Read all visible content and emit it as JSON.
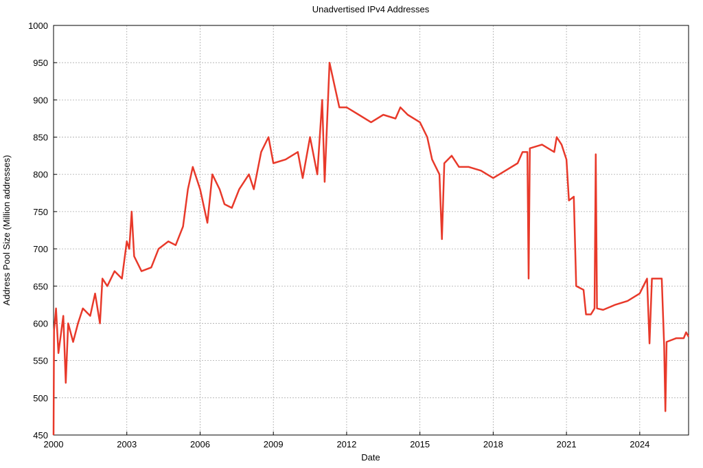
{
  "chart_data": {
    "type": "line",
    "title": "Unadvertised IPv4 Addresses",
    "x_label": "Date",
    "y_label": "Address Pool Size (Million addresses)",
    "xlim": [
      2000,
      2026
    ],
    "xticks": [
      2000,
      2003,
      2006,
      2009,
      2012,
      2015,
      2018,
      2021,
      2024
    ],
    "ylim": [
      450,
      1000
    ],
    "yticks": [
      450,
      500,
      550,
      600,
      650,
      700,
      750,
      800,
      850,
      900,
      950,
      1000
    ],
    "grid": true,
    "series": [
      {
        "color": "#e8392a",
        "x": [
          2000.0,
          2000.02,
          2000.1,
          2000.2,
          2000.4,
          2000.5,
          2000.6,
          2000.8,
          2001.0,
          2001.2,
          2001.5,
          2001.7,
          2001.9,
          2002.0,
          2002.2,
          2002.5,
          2002.8,
          2003.0,
          2003.1,
          2003.2,
          2003.3,
          2003.6,
          2004.0,
          2004.3,
          2004.7,
          2005.0,
          2005.3,
          2005.5,
          2005.7,
          2006.0,
          2006.3,
          2006.5,
          2006.8,
          2007.0,
          2007.3,
          2007.6,
          2008.0,
          2008.2,
          2008.5,
          2008.8,
          2009.0,
          2009.5,
          2010.0,
          2010.2,
          2010.5,
          2010.8,
          2011.0,
          2011.1,
          2011.3,
          2011.5,
          2011.7,
          2012.0,
          2012.5,
          2013.0,
          2013.5,
          2014.0,
          2014.2,
          2014.5,
          2015.0,
          2015.3,
          2015.5,
          2015.8,
          2015.9,
          2016.0,
          2016.3,
          2016.6,
          2017.0,
          2017.5,
          2018.0,
          2018.5,
          2019.0,
          2019.2,
          2019.4,
          2019.45,
          2019.5,
          2020.0,
          2020.5,
          2020.6,
          2020.8,
          2021.0,
          2021.1,
          2021.3,
          2021.4,
          2021.7,
          2021.8,
          2022.0,
          2022.15,
          2022.2,
          2022.25,
          2022.5,
          2023.0,
          2023.5,
          2024.0,
          2024.3,
          2024.4,
          2024.5,
          2024.9,
          2025.0,
          2025.05,
          2025.1,
          2025.5,
          2025.8,
          2025.9,
          2026.0
        ],
        "values": [
          450,
          590,
          620,
          560,
          610,
          520,
          600,
          575,
          600,
          620,
          610,
          640,
          600,
          660,
          650,
          670,
          660,
          710,
          700,
          750,
          690,
          670,
          675,
          700,
          710,
          705,
          730,
          780,
          810,
          780,
          735,
          800,
          780,
          760,
          755,
          780,
          800,
          780,
          830,
          850,
          815,
          820,
          830,
          795,
          850,
          800,
          900,
          790,
          950,
          920,
          890,
          890,
          880,
          870,
          880,
          875,
          890,
          880,
          870,
          850,
          820,
          800,
          713,
          815,
          825,
          810,
          810,
          805,
          795,
          805,
          815,
          830,
          830,
          660,
          835,
          840,
          830,
          850,
          840,
          820,
          765,
          770,
          650,
          645,
          612,
          612,
          620,
          827,
          620,
          618,
          625,
          630,
          640,
          660,
          573,
          660,
          660,
          570,
          482,
          575,
          580,
          580,
          588,
          582
        ]
      }
    ]
  }
}
